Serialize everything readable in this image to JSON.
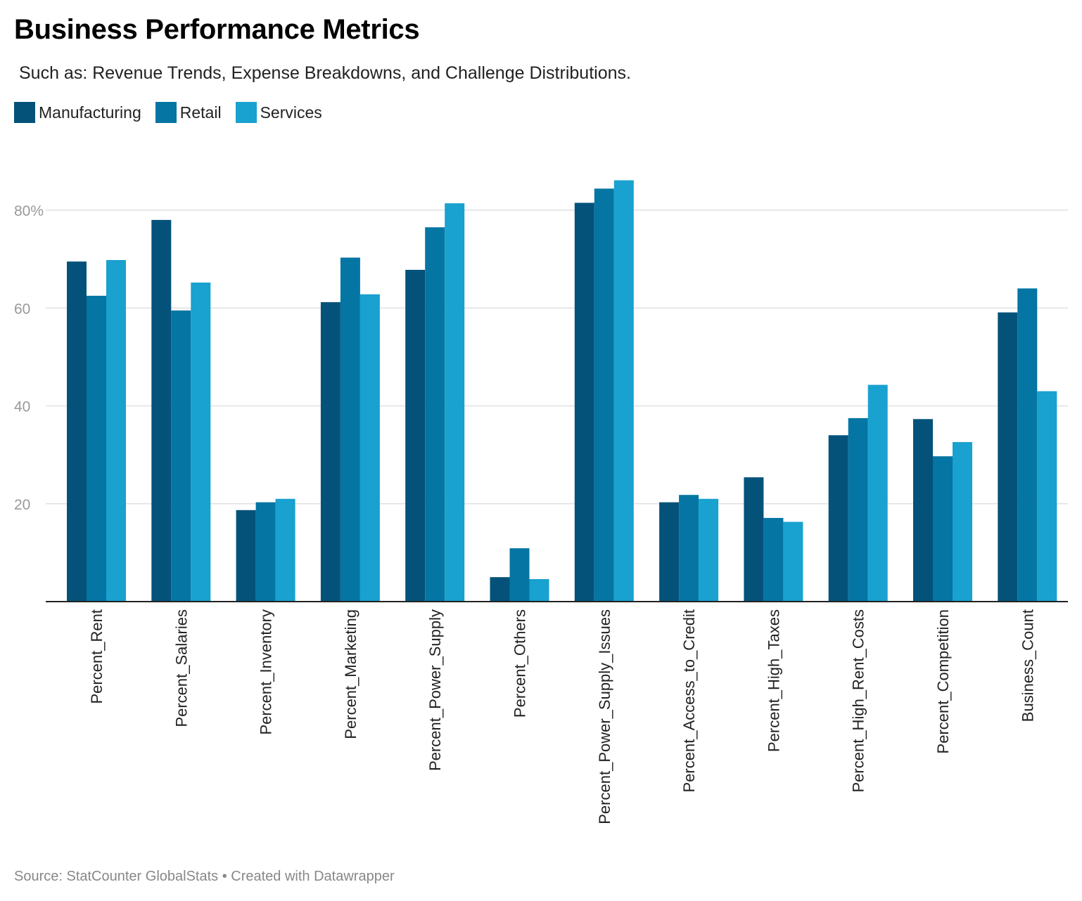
{
  "title": "Business Performance Metrics",
  "subtitle": "Such as: Revenue Trends, Expense Breakdowns, and Challenge Distributions.",
  "footer": "Source: StatCounter GlobalStats • Created with Datawrapper",
  "colors": {
    "manufacturing": "#04527a",
    "retail": "#0575a3",
    "services": "#19a1cf",
    "grid": "#e0e0e0",
    "axis": "#222222",
    "tick_text": "#999999"
  },
  "chart_data": {
    "type": "bar",
    "title": "Business Performance Metrics",
    "subtitle": "Such as: Revenue Trends, Expense Breakdowns, and Challenge Distributions.",
    "categories": [
      "Percent_Rent",
      "Percent_Salaries",
      "Percent_Inventory",
      "Percent_Marketing",
      "Percent_Power_Supply",
      "Percent_Others",
      "Percent_Power_Supply_Issues",
      "Percent_Access_to_Credit",
      "Percent_High_Taxes",
      "Percent_High_Rent_Costs",
      "Percent_Competition",
      "Business_Count"
    ],
    "series": [
      {
        "name": "Manufacturing",
        "color": "#04527a",
        "values": [
          69.5,
          78.0,
          18.7,
          61.2,
          67.8,
          5.0,
          81.5,
          20.3,
          25.4,
          34.0,
          37.3,
          59.1
        ]
      },
      {
        "name": "Retail",
        "color": "#0575a3",
        "values": [
          62.5,
          59.5,
          20.3,
          70.3,
          76.5,
          10.9,
          84.4,
          21.8,
          17.1,
          37.5,
          29.7,
          64.0
        ]
      },
      {
        "name": "Services",
        "color": "#19a1cf",
        "values": [
          69.8,
          65.2,
          21.0,
          62.8,
          81.4,
          4.6,
          86.1,
          21.0,
          16.3,
          44.3,
          32.6,
          43.0
        ]
      }
    ],
    "yticks": [
      20,
      40,
      60,
      80
    ],
    "ytick_labels": [
      "20",
      "40",
      "60",
      "80%"
    ],
    "ylim": [
      0,
      90
    ],
    "xlabel": "",
    "ylabel": "",
    "grid": true,
    "legend_position": "top-left"
  }
}
